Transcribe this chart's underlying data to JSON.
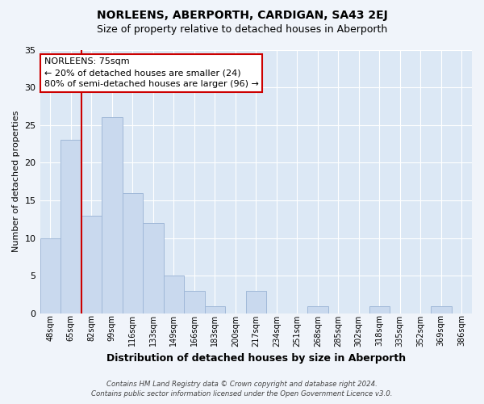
{
  "title": "NORLEENS, ABERPORTH, CARDIGAN, SA43 2EJ",
  "subtitle": "Size of property relative to detached houses in Aberporth",
  "xlabel": "Distribution of detached houses by size in Aberporth",
  "ylabel": "Number of detached properties",
  "bar_labels": [
    "48sqm",
    "65sqm",
    "82sqm",
    "99sqm",
    "116sqm",
    "133sqm",
    "149sqm",
    "166sqm",
    "183sqm",
    "200sqm",
    "217sqm",
    "234sqm",
    "251sqm",
    "268sqm",
    "285sqm",
    "302sqm",
    "318sqm",
    "335sqm",
    "352sqm",
    "369sqm",
    "386sqm"
  ],
  "bar_values": [
    10,
    23,
    13,
    26,
    16,
    12,
    5,
    3,
    1,
    0,
    3,
    0,
    0,
    1,
    0,
    0,
    1,
    0,
    0,
    1,
    0
  ],
  "bar_color": "#c9d9ee",
  "bar_edge_color": "#a0b8d8",
  "vline_x": 1.5,
  "vline_color": "#cc0000",
  "ylim": [
    0,
    35
  ],
  "yticks": [
    0,
    5,
    10,
    15,
    20,
    25,
    30,
    35
  ],
  "annotation_line1": "NORLEENS: 75sqm",
  "annotation_line2": "← 20% of detached houses are smaller (24)",
  "annotation_line3": "80% of semi-detached houses are larger (96) →",
  "annotation_box_color": "#ffffff",
  "annotation_box_edge": "#cc0000",
  "footer_line1": "Contains HM Land Registry data © Crown copyright and database right 2024.",
  "footer_line2": "Contains public sector information licensed under the Open Government Licence v3.0.",
  "bg_color": "#f0f4fa",
  "plot_bg_color": "#dce8f5",
  "grid_color": "#ffffff",
  "title_fontsize": 10,
  "subtitle_fontsize": 9,
  "ylabel_fontsize": 8,
  "xlabel_fontsize": 9
}
